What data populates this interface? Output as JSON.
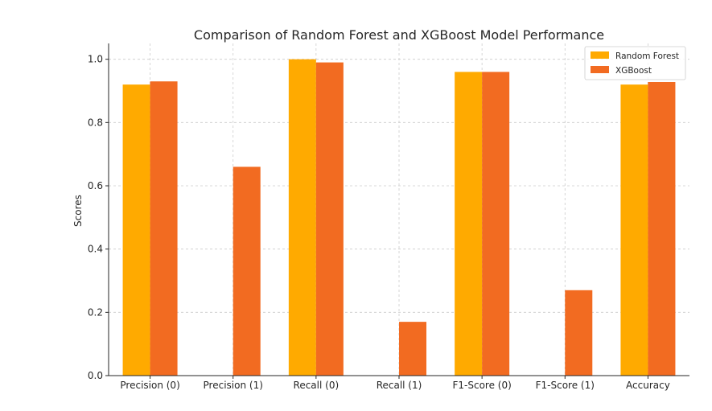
{
  "chart_data": {
    "type": "bar",
    "title": "Comparison of Random Forest and XGBoost Model Performance",
    "xlabel": "",
    "ylabel": "Scores",
    "categories": [
      "Precision (0)",
      "Precision (1)",
      "Recall (0)",
      "Recall (1)",
      "F1-Score (0)",
      "F1-Score (1)",
      "Accuracy"
    ],
    "series": [
      {
        "name": "Random Forest",
        "color": "#FFAA00",
        "values": [
          0.92,
          0.0,
          1.0,
          0.0,
          0.96,
          0.0,
          0.92
        ]
      },
      {
        "name": "XGBoost",
        "color": "#F26B21",
        "values": [
          0.93,
          0.66,
          0.99,
          0.17,
          0.96,
          0.27,
          0.928
        ]
      }
    ],
    "ylim": [
      0,
      1.05
    ],
    "yticks": [
      0.0,
      0.2,
      0.4,
      0.6,
      0.8,
      1.0
    ],
    "ytick_labels": [
      "0.0",
      "0.2",
      "0.4",
      "0.6",
      "0.8",
      "1.0"
    ],
    "grid": true,
    "legend_position": "top-right"
  }
}
